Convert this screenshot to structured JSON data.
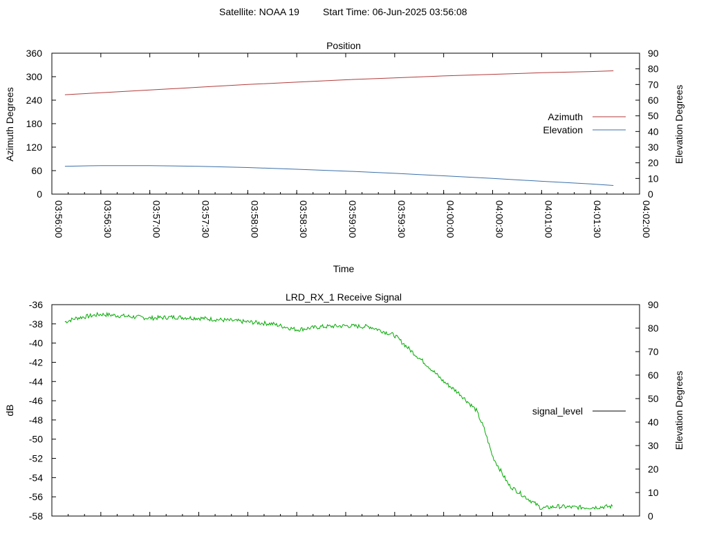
{
  "header": {
    "satellite": "Satellite: NOAA 19",
    "start_time": "Start Time: 06-Jun-2025 03:56:08"
  },
  "colors": {
    "azimuth": "#b23a3a",
    "elevation": "#3a6fa8",
    "signal": "#00aa00",
    "signal_legend": "#000000"
  },
  "chart_data": [
    {
      "type": "line",
      "title": "Position",
      "xlabel": "Time",
      "ylabel": "Azimuth Degrees",
      "y2label": "Elevation Degrees",
      "xlim": [
        "03:56:00",
        "04:02:00"
      ],
      "ylim": [
        0,
        360
      ],
      "y2lim": [
        0,
        90
      ],
      "x_ticks": [
        "03:56:00",
        "03:56:30",
        "03:57:00",
        "03:57:30",
        "03:58:00",
        "03:58:30",
        "03:59:00",
        "03:59:30",
        "04:00:00",
        "04:00:30",
        "04:01:00",
        "04:01:30",
        "04:02:00"
      ],
      "y_ticks": [
        "0",
        "60",
        "120",
        "180",
        "240",
        "300",
        "360"
      ],
      "y2_ticks": [
        "0",
        "10",
        "20",
        "30",
        "40",
        "50",
        "60",
        "70",
        "80",
        "90"
      ],
      "legend_position": "right",
      "series": [
        {
          "name": "Azimuth",
          "axis": "y",
          "x": [
            "03:56:08",
            "03:56:30",
            "03:57:00",
            "03:57:30",
            "03:58:00",
            "03:58:30",
            "03:59:00",
            "03:59:30",
            "04:00:00",
            "04:00:30",
            "04:01:00",
            "04:01:30",
            "04:01:44"
          ],
          "y": [
            254,
            259,
            266,
            273,
            280,
            286,
            292,
            297,
            302,
            306,
            310,
            313,
            315
          ]
        },
        {
          "name": "Elevation",
          "axis": "y2",
          "x": [
            "03:56:08",
            "03:56:30",
            "03:57:00",
            "03:57:30",
            "03:58:00",
            "03:58:30",
            "03:59:00",
            "03:59:30",
            "04:00:00",
            "04:00:30",
            "04:01:00",
            "04:01:30",
            "04:01:44"
          ],
          "y": [
            17.8,
            18.2,
            18.2,
            17.8,
            17.0,
            15.9,
            14.7,
            13.3,
            11.7,
            10.0,
            8.2,
            6.5,
            5.5
          ]
        }
      ]
    },
    {
      "type": "line",
      "title": "LRD_RX_1 Receive Signal",
      "ylabel": "dB",
      "y2label": "Elevation Degrees",
      "xlim": [
        "03:56:00",
        "04:02:00"
      ],
      "ylim": [
        -58,
        -36
      ],
      "y2lim": [
        0,
        90
      ],
      "y_ticks": [
        "-58",
        "-56",
        "-54",
        "-52",
        "-50",
        "-48",
        "-46",
        "-44",
        "-42",
        "-40",
        "-38",
        "-36"
      ],
      "y2_ticks": [
        "0",
        "10",
        "20",
        "30",
        "40",
        "50",
        "60",
        "70",
        "80",
        "90"
      ],
      "legend_position": "right",
      "series": [
        {
          "name": "signal_level",
          "axis": "y",
          "x": [
            "03:56:08",
            "03:56:15",
            "03:56:30",
            "03:56:45",
            "03:57:00",
            "03:57:15",
            "03:57:30",
            "03:57:45",
            "03:58:00",
            "03:58:15",
            "03:58:30",
            "03:58:45",
            "03:59:00",
            "03:59:15",
            "03:59:30",
            "03:59:40",
            "03:59:50",
            "04:00:00",
            "04:00:10",
            "04:00:20",
            "04:00:25",
            "04:00:30",
            "04:00:40",
            "04:00:50",
            "04:01:00",
            "04:01:10",
            "04:01:20",
            "04:01:30",
            "04:01:44"
          ],
          "y": [
            -37.8,
            -37.4,
            -37.0,
            -37.2,
            -37.4,
            -37.3,
            -37.4,
            -37.6,
            -37.8,
            -38.0,
            -38.6,
            -38.3,
            -38.2,
            -38.3,
            -39.2,
            -40.8,
            -42.3,
            -44.0,
            -45.3,
            -47.0,
            -49.0,
            -51.8,
            -54.8,
            -56.0,
            -57.2,
            -57.0,
            -57.1,
            -57.1,
            -57.0
          ]
        }
      ]
    }
  ]
}
